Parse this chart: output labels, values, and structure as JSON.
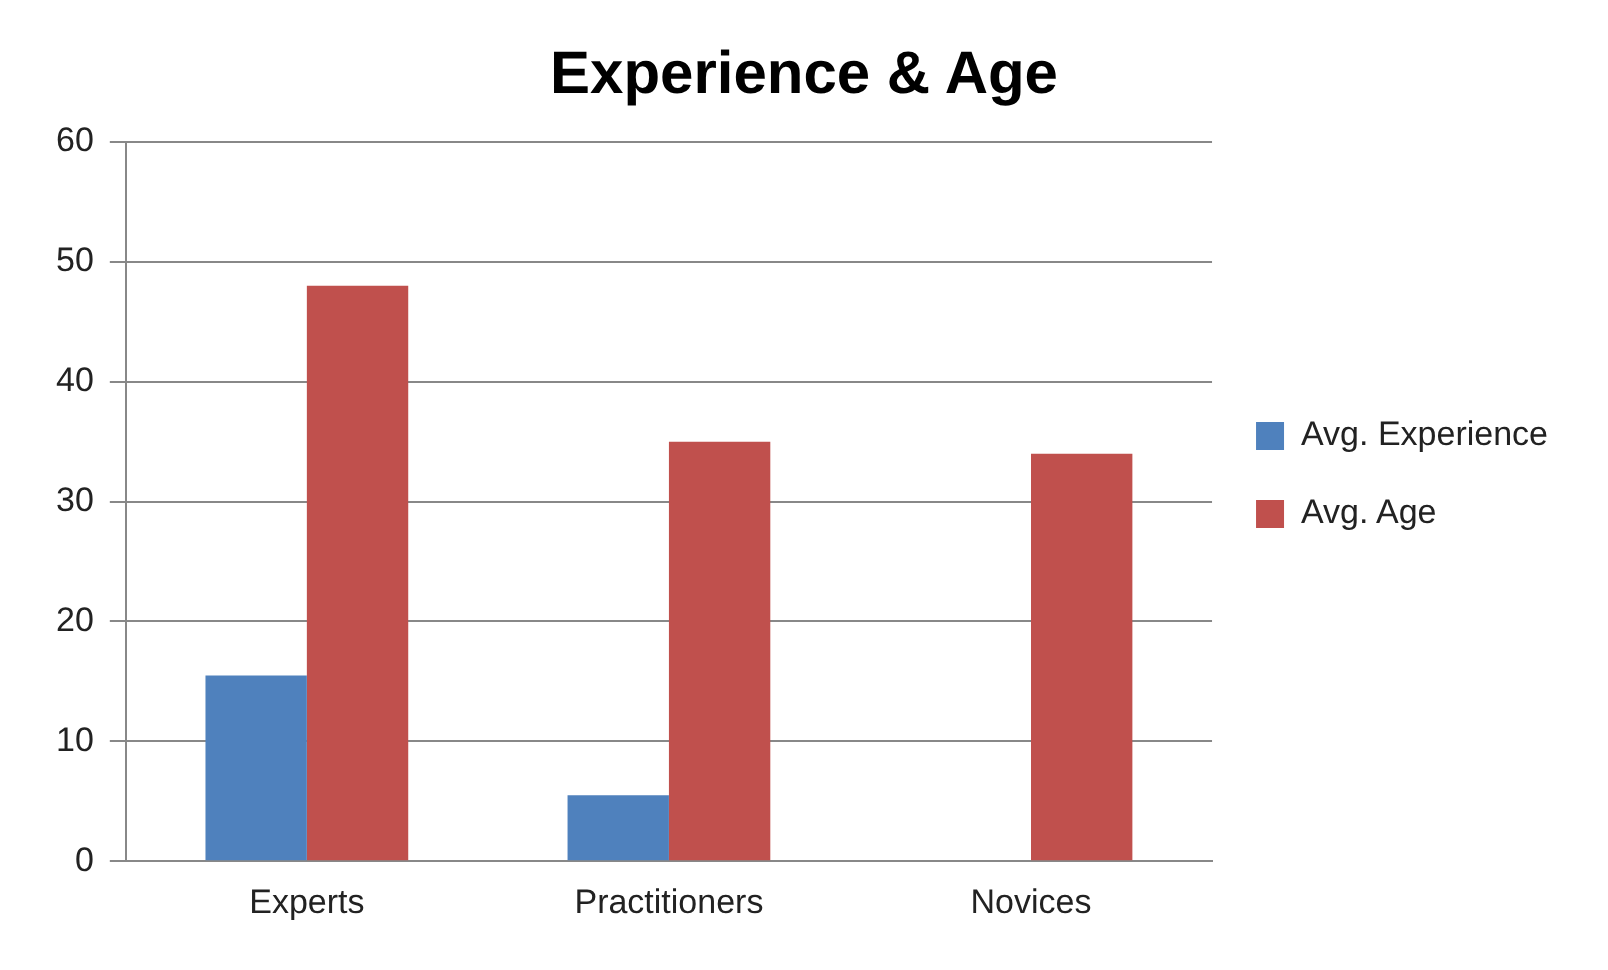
{
  "chart_data": {
    "type": "bar",
    "title": "Experience & Age",
    "categories": [
      "Experts",
      "Practitioners",
      "Novices"
    ],
    "series": [
      {
        "name": "Avg. Experience",
        "color": "#4f81bd",
        "values": [
          15.5,
          5.5,
          0
        ]
      },
      {
        "name": "Avg. Age",
        "color": "#c0504d",
        "values": [
          48,
          35,
          34
        ]
      }
    ],
    "ylim": [
      0,
      60
    ],
    "yticks": [
      0,
      10,
      20,
      30,
      40,
      50,
      60
    ],
    "grid": "y",
    "legend": "right"
  }
}
